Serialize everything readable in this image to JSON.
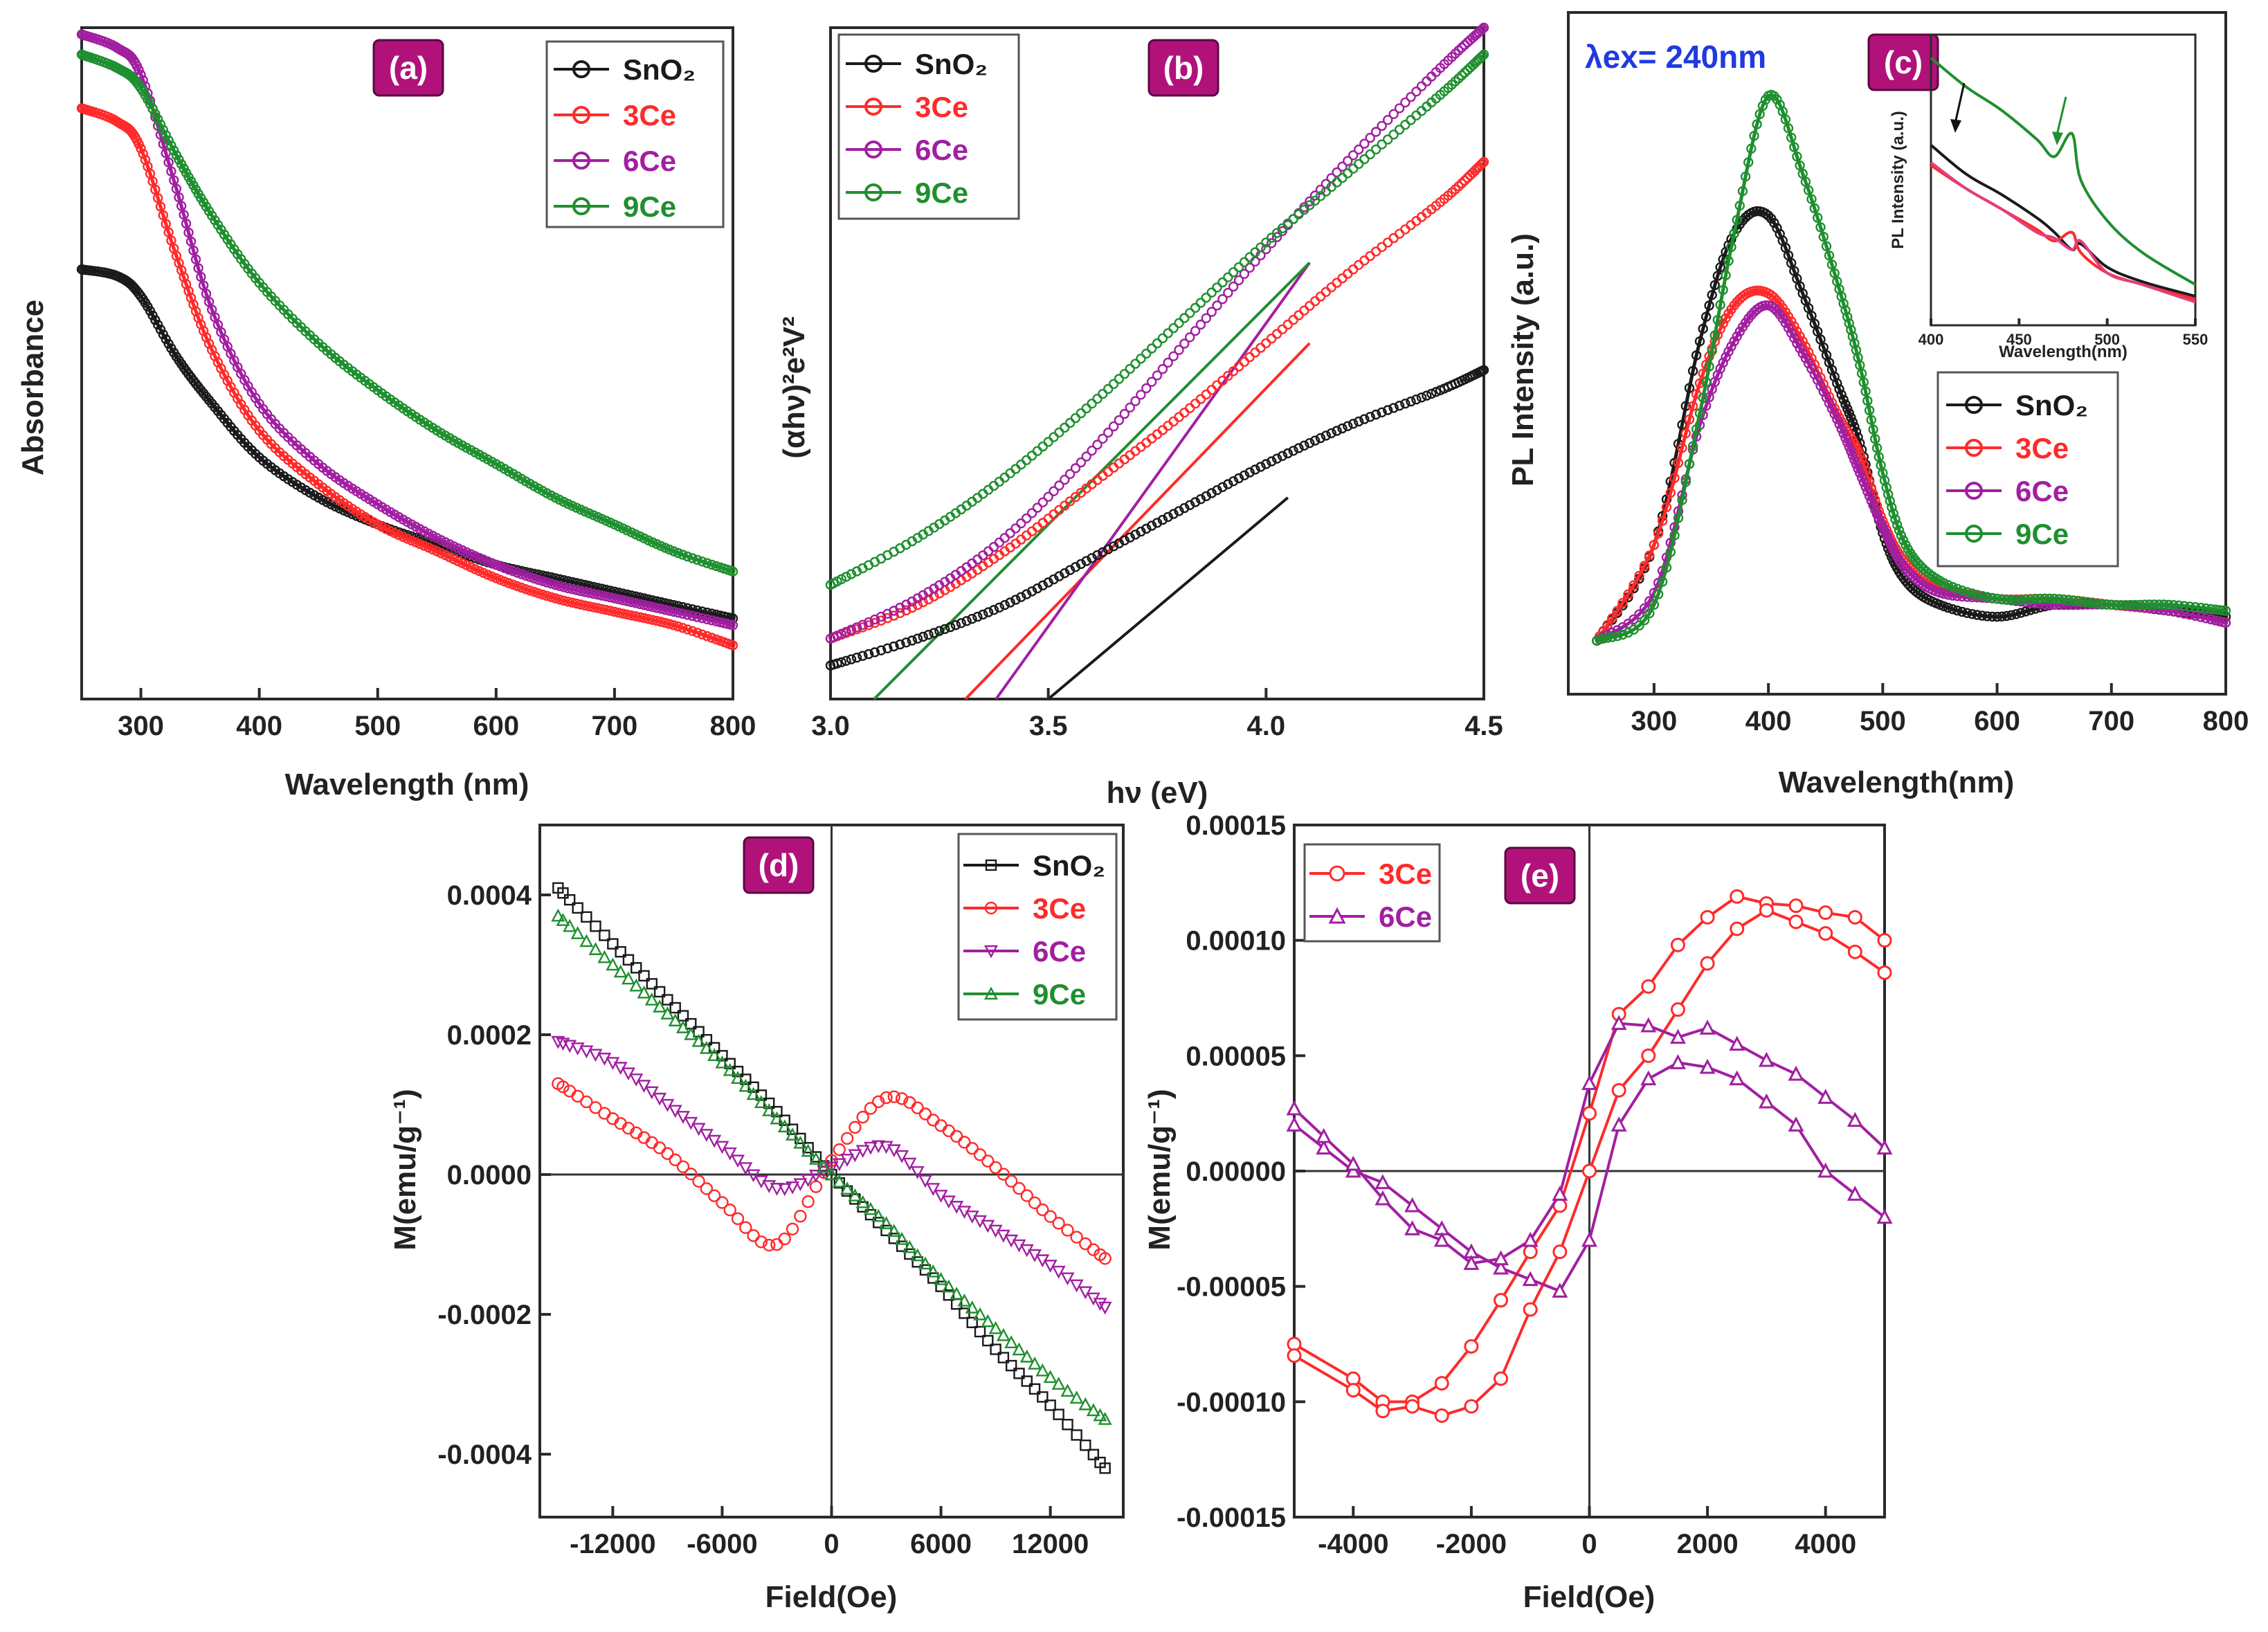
{
  "figure": {
    "panels": [
      "(a)",
      "(b)",
      "(c)",
      "(d)",
      "(e)"
    ]
  },
  "colors": {
    "SnO2": "#1a1a1a",
    "3Ce": "#ff2a2a",
    "6Ce": "#a11fa1",
    "9Ce": "#1f8f2f",
    "inset_6Ce": "#e0407a"
  },
  "chart_data": [
    {
      "id": "a",
      "panel_label": "(a)",
      "type": "line",
      "xlabel": "Wavelength (nm)",
      "ylabel": "Absorbance",
      "xlim": [
        250,
        800
      ],
      "ylim": [
        0,
        1
      ],
      "xticks": [
        300,
        400,
        500,
        600,
        700,
        800
      ],
      "xtick_labels": [
        "300",
        "400",
        "500",
        "600",
        "700",
        "800"
      ],
      "legend": [
        "SnO₂",
        "3Ce",
        "6Ce",
        "9Ce"
      ],
      "legend_position": "top-right",
      "x": [
        250,
        280,
        300,
        330,
        360,
        400,
        450,
        500,
        550,
        600,
        650,
        700,
        750,
        800
      ],
      "series": [
        {
          "name": "SnO₂",
          "values": [
            0.64,
            0.63,
            0.6,
            0.51,
            0.44,
            0.36,
            0.3,
            0.26,
            0.23,
            0.2,
            0.18,
            0.16,
            0.14,
            0.12
          ]
        },
        {
          "name": "3Ce",
          "values": [
            0.88,
            0.86,
            0.82,
            0.66,
            0.52,
            0.4,
            0.32,
            0.26,
            0.22,
            0.18,
            0.15,
            0.13,
            0.11,
            0.08
          ]
        },
        {
          "name": "6Ce",
          "values": [
            0.99,
            0.97,
            0.93,
            0.76,
            0.58,
            0.44,
            0.35,
            0.29,
            0.24,
            0.2,
            0.17,
            0.15,
            0.13,
            0.11
          ]
        },
        {
          "name": "9Ce",
          "values": [
            0.96,
            0.94,
            0.91,
            0.81,
            0.72,
            0.62,
            0.53,
            0.46,
            0.4,
            0.35,
            0.3,
            0.26,
            0.22,
            0.19
          ]
        }
      ]
    },
    {
      "id": "b",
      "panel_label": "(b)",
      "type": "line",
      "xlabel": "hν (eV)",
      "ylabel": "(αhν)²e²V²",
      "xlim": [
        3.0,
        4.5
      ],
      "ylim": [
        0,
        1
      ],
      "xticks": [
        3.0,
        3.5,
        4.0,
        4.5
      ],
      "xtick_labels": [
        "3.0",
        "3.5",
        "4.0",
        "4.5"
      ],
      "legend": [
        "SnO₂",
        "3Ce",
        "6Ce",
        "9Ce"
      ],
      "legend_position": "top-left",
      "x": [
        3.0,
        3.2,
        3.4,
        3.6,
        3.8,
        4.0,
        4.2,
        4.4,
        4.5
      ],
      "series": [
        {
          "name": "SnO₂",
          "values": [
            0.05,
            0.09,
            0.14,
            0.21,
            0.28,
            0.35,
            0.41,
            0.46,
            0.49
          ]
        },
        {
          "name": "3Ce",
          "values": [
            0.09,
            0.14,
            0.22,
            0.32,
            0.42,
            0.53,
            0.64,
            0.74,
            0.8
          ]
        },
        {
          "name": "6Ce",
          "values": [
            0.09,
            0.15,
            0.24,
            0.37,
            0.52,
            0.67,
            0.81,
            0.94,
            1.0
          ]
        },
        {
          "name": "9Ce",
          "values": [
            0.17,
            0.24,
            0.33,
            0.44,
            0.56,
            0.68,
            0.79,
            0.9,
            0.96
          ]
        }
      ],
      "fit_lines": [
        {
          "name": "SnO₂",
          "x": [
            3.5,
            4.05
          ],
          "y": [
            0.0,
            0.3
          ]
        },
        {
          "name": "3Ce",
          "x": [
            3.31,
            4.1
          ],
          "y": [
            0.0,
            0.53
          ]
        },
        {
          "name": "6Ce",
          "x": [
            3.38,
            4.1
          ],
          "y": [
            0.0,
            0.65
          ]
        },
        {
          "name": "9Ce",
          "x": [
            3.1,
            4.1
          ],
          "y": [
            0.0,
            0.65
          ]
        }
      ]
    },
    {
      "id": "c",
      "panel_label": "(c)",
      "type": "line",
      "xlabel": "Wavelength(nm)",
      "ylabel": "PL Intensity (a.u.)",
      "annotation": "λex= 240nm",
      "xlim": [
        225,
        800
      ],
      "ylim": [
        0,
        1
      ],
      "xticks": [
        300,
        400,
        500,
        600,
        700,
        800
      ],
      "xtick_labels": [
        "300",
        "400",
        "500",
        "600",
        "700",
        "800"
      ],
      "legend": [
        "SnO₂",
        "3Ce",
        "6Ce",
        "9Ce"
      ],
      "legend_position": "center-right",
      "x": [
        250,
        300,
        340,
        370,
        400,
        430,
        460,
        480,
        500,
        520,
        550,
        600,
        650,
        700,
        750,
        800
      ],
      "series": [
        {
          "name": "SnO₂",
          "values": [
            0.02,
            0.18,
            0.52,
            0.7,
            0.73,
            0.6,
            0.45,
            0.35,
            0.2,
            0.12,
            0.08,
            0.06,
            0.08,
            0.08,
            0.07,
            0.06
          ]
        },
        {
          "name": "3Ce",
          "values": [
            0.02,
            0.18,
            0.45,
            0.58,
            0.6,
            0.52,
            0.4,
            0.33,
            0.22,
            0.15,
            0.11,
            0.09,
            0.09,
            0.08,
            0.07,
            0.05
          ]
        },
        {
          "name": "6Ce",
          "values": [
            0.02,
            0.1,
            0.38,
            0.52,
            0.58,
            0.5,
            0.39,
            0.3,
            0.21,
            0.14,
            0.1,
            0.09,
            0.08,
            0.08,
            0.07,
            0.05
          ]
        },
        {
          "name": "9Ce",
          "values": [
            0.02,
            0.08,
            0.4,
            0.7,
            0.93,
            0.8,
            0.62,
            0.48,
            0.3,
            0.18,
            0.12,
            0.09,
            0.09,
            0.08,
            0.08,
            0.07
          ]
        }
      ],
      "inset": {
        "xlabel": "Wavelength(nm)",
        "ylabel": "PL Intensity (a.u.)",
        "xlim": [
          400,
          550
        ],
        "xticks": [
          400,
          450,
          500,
          550
        ],
        "xtick_labels": [
          "400",
          "450",
          "500",
          "550"
        ],
        "x": [
          400,
          420,
          440,
          460,
          470,
          480,
          485,
          500,
          520,
          550
        ],
        "series": [
          {
            "name": "SnO₂",
            "values": [
              0.62,
              0.52,
              0.45,
              0.37,
              0.32,
              0.26,
              0.28,
              0.2,
              0.15,
              0.1
            ]
          },
          {
            "name": "3Ce",
            "values": [
              0.55,
              0.47,
              0.4,
              0.33,
              0.29,
              0.32,
              0.25,
              0.18,
              0.14,
              0.09
            ]
          },
          {
            "name": "6Ce",
            "values": [
              0.56,
              0.47,
              0.4,
              0.32,
              0.3,
              0.26,
              0.29,
              0.18,
              0.14,
              0.08
            ]
          },
          {
            "name": "9Ce",
            "values": [
              0.92,
              0.82,
              0.74,
              0.64,
              0.58,
              0.66,
              0.5,
              0.36,
              0.25,
              0.14
            ]
          }
        ]
      }
    },
    {
      "id": "d",
      "panel_label": "(d)",
      "type": "scatter",
      "xlabel": "Field(Oe)",
      "ylabel": "M(emu/g⁻¹)",
      "xlim": [
        -16000,
        16000
      ],
      "ylim": [
        -0.00049,
        0.0005
      ],
      "xticks": [
        -12000,
        -6000,
        0,
        6000,
        12000
      ],
      "xtick_labels": [
        "-12000",
        "-6000",
        "0",
        "6000",
        "12000"
      ],
      "yticks": [
        -0.0004,
        -0.0002,
        0.0,
        0.0002,
        0.0004
      ],
      "ytick_labels": [
        "-0.0004",
        "-0.0002",
        "0.0000",
        "0.0002",
        "0.0004"
      ],
      "legend": [
        "SnO₂",
        "3Ce",
        "6Ce",
        "9Ce"
      ],
      "legend_position": "top-right",
      "x": [
        -15000,
        -12000,
        -9000,
        -6000,
        -3000,
        0,
        3000,
        6000,
        9000,
        12000,
        15000
      ],
      "series": [
        {
          "name": "SnO₂",
          "values": [
            0.00041,
            0.00033,
            0.00025,
            0.00017,
            9e-05,
            0.0,
            -8e-05,
            -0.00016,
            -0.00025,
            -0.00033,
            -0.00042
          ]
        },
        {
          "name": "3Ce",
          "values": [
            0.00013,
            8e-05,
            3e-05,
            -4e-05,
            -0.0001,
            2e-05,
            0.00011,
            7e-05,
            1e-05,
            -6e-05,
            -0.00012
          ]
        },
        {
          "name": "6Ce",
          "values": [
            0.00019,
            0.00016,
            0.0001,
            4e-05,
            -2e-05,
            1e-05,
            4e-05,
            -3e-05,
            -8e-05,
            -0.00013,
            -0.00019
          ]
        },
        {
          "name": "9Ce",
          "values": [
            0.00037,
            0.0003,
            0.00023,
            0.00016,
            8e-05,
            0.0,
            -7e-05,
            -0.00015,
            -0.00022,
            -0.00029,
            -0.00035
          ]
        }
      ]
    },
    {
      "id": "e",
      "panel_label": "(e)",
      "type": "line",
      "xlabel": "Field(Oe)",
      "ylabel": "M(emu/g⁻¹)",
      "xlim": [
        -5000,
        5000
      ],
      "ylim": [
        -0.00015,
        0.00015
      ],
      "xticks": [
        -4000,
        -2000,
        0,
        2000,
        4000
      ],
      "xtick_labels": [
        "-4000",
        "-2000",
        "0",
        "2000",
        "4000"
      ],
      "yticks": [
        -0.00015,
        -0.0001,
        -5e-05,
        0.0,
        5e-05,
        0.0001,
        0.00015
      ],
      "ytick_labels": [
        "-0.00015",
        "-0.00010",
        "-0.00005",
        "0.00000",
        "0.00005",
        "0.00010",
        "0.00015"
      ],
      "legend": [
        "3Ce",
        "6Ce"
      ],
      "legend_position": "top-left",
      "series": [
        {
          "name": "3Ce",
          "x": [
            -5000,
            -4000,
            -3500,
            -3000,
            -2500,
            -2000,
            -1500,
            -1000,
            -500,
            0,
            500,
            1000,
            1500,
            2000,
            2500,
            3000,
            3500,
            4000,
            4500,
            5000
          ],
          "values": [
            -7.5e-05,
            -9e-05,
            -0.0001,
            -0.0001,
            -9.2e-05,
            -7.6e-05,
            -5.6e-05,
            -3.5e-05,
            -1.5e-05,
            2.5e-05,
            6.8e-05,
            8e-05,
            9.8e-05,
            0.00011,
            0.000119,
            0.000116,
            0.000115,
            0.000112,
            0.00011,
            0.0001
          ]
        },
        {
          "name": "3Ce",
          "x": [
            -5000,
            -4000,
            -3500,
            -3000,
            -2500,
            -2000,
            -1500,
            -1000,
            -500,
            0,
            500,
            1000,
            1500,
            2000,
            2500,
            3000,
            3500,
            4000,
            4500,
            5000
          ],
          "values": [
            -8e-05,
            -9.5e-05,
            -0.000104,
            -0.000102,
            -0.000106,
            -0.000102,
            -9e-05,
            -6e-05,
            -3.5e-05,
            -0.0,
            3.5e-05,
            5e-05,
            7e-05,
            9e-05,
            0.000105,
            0.000113,
            0.000108,
            0.000103,
            9.5e-05,
            8.6e-05
          ]
        },
        {
          "name": "6Ce",
          "x": [
            -5000,
            -4500,
            -4000,
            -3500,
            -3000,
            -2500,
            -2000,
            -1500,
            -1000,
            -500,
            0,
            500,
            1000,
            1500,
            2000,
            2500,
            3000,
            3500,
            4000,
            4500,
            5000
          ],
          "values": [
            2e-05,
            1e-05,
            0.0,
            -5e-06,
            -1.5e-05,
            -2.5e-05,
            -3.5e-05,
            -4.2e-05,
            -4.7e-05,
            -5.2e-05,
            -3e-05,
            2e-05,
            4e-05,
            4.7e-05,
            4.5e-05,
            4e-05,
            3e-05,
            2e-05,
            0.0,
            -1e-05,
            -2e-05
          ]
        },
        {
          "name": "6Ce",
          "x": [
            -5000,
            -4500,
            -4000,
            -3500,
            -3000,
            -2500,
            -2000,
            -1500,
            -1000,
            -500,
            0,
            500,
            1000,
            1500,
            2000,
            2500,
            3000,
            3500,
            4000,
            4500,
            5000
          ],
          "values": [
            2.7e-05,
            1.5e-05,
            3e-06,
            -1.2e-05,
            -2.5e-05,
            -3e-05,
            -4e-05,
            -3.8e-05,
            -3e-05,
            -1e-05,
            3.8e-05,
            6.4e-05,
            6.3e-05,
            5.8e-05,
            6.2e-05,
            5.5e-05,
            4.8e-05,
            4.2e-05,
            3.2e-05,
            2.2e-05,
            1e-05
          ]
        }
      ]
    }
  ]
}
